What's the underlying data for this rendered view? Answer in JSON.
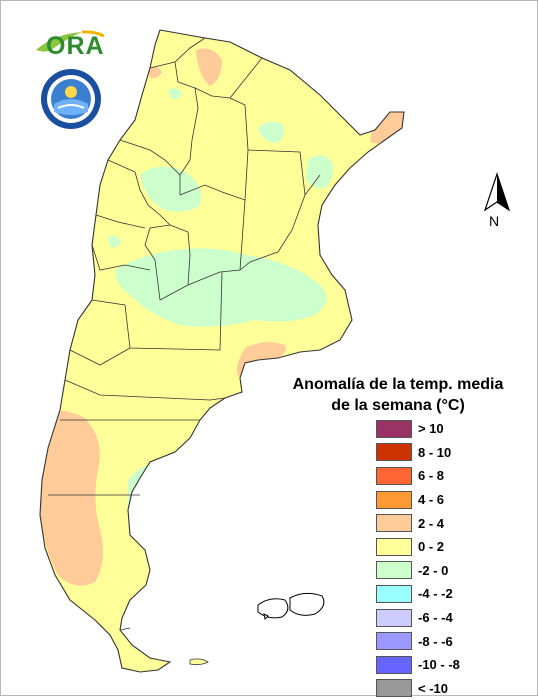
{
  "logos": {
    "ora_text": "ORA"
  },
  "north_arrow": {
    "label": "N"
  },
  "legend": {
    "title_line1": "Anomalía de la temp. media",
    "title_line2": "de la semana (°C)",
    "items": [
      {
        "label": "> 10",
        "color": "#993366"
      },
      {
        "label": "8 - 10",
        "color": "#cc3300"
      },
      {
        "label": "6 - 8",
        "color": "#ff6633"
      },
      {
        "label": "4 - 6",
        "color": "#ff9933"
      },
      {
        "label": "2 - 4",
        "color": "#ffcc99"
      },
      {
        "label": "0 - 2",
        "color": "#ffff99"
      },
      {
        "label": "-2 - 0",
        "color": "#ccffcc"
      },
      {
        "label": "-4 - -2",
        "color": "#99ffff"
      },
      {
        "label": "-6 - -4",
        "color": "#ccccff"
      },
      {
        "label": "-8 - -6",
        "color": "#9999ff"
      },
      {
        "label": "-10 - -8",
        "color": "#6666ff"
      },
      {
        "label": "< -10",
        "color": "#999999"
      }
    ]
  },
  "map": {
    "base_color": "#ffff99",
    "cool_color": "#ccffcc",
    "warm_color": "#ffcc99",
    "border_color": "#333333"
  }
}
